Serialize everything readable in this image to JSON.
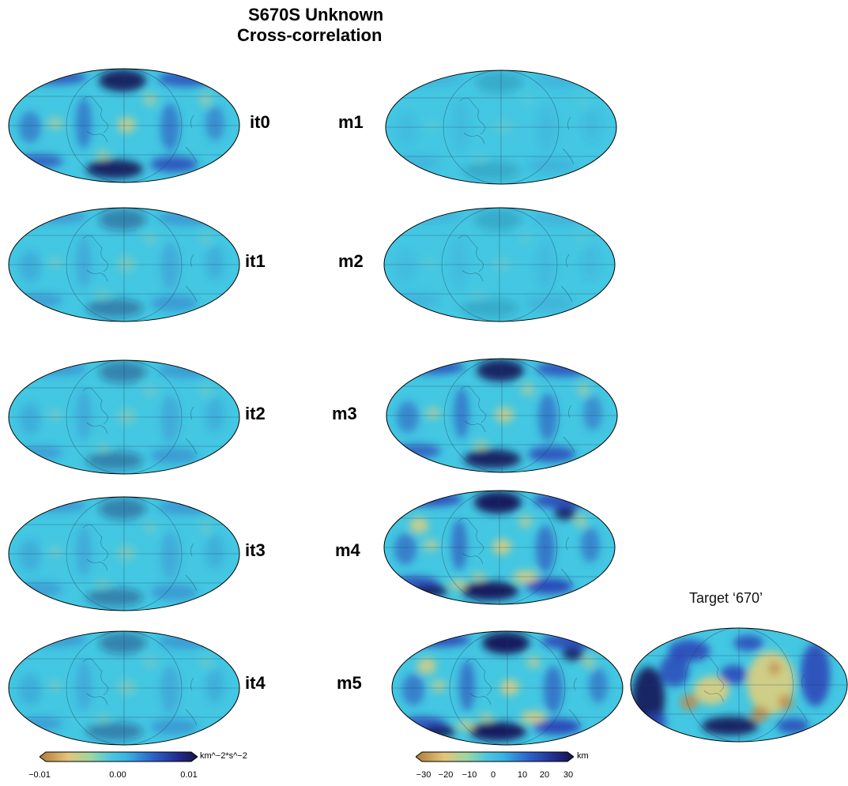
{
  "title": {
    "line1": "S670S Unknown",
    "line2": "Cross-correlation"
  },
  "left_labels": [
    "it0",
    "it1",
    "it2",
    "it3",
    "it4"
  ],
  "right_labels": [
    "m1",
    "m2",
    "m3",
    "m4",
    "m5"
  ],
  "target_title": "Target ‘670’",
  "colorbar_left": {
    "unit": "km^−2*s^−2",
    "ticks": [
      "−0.01",
      "0.00",
      "0.01"
    ]
  },
  "colorbar_right": {
    "unit": "km",
    "ticks": [
      "−30",
      "−20",
      "−10",
      "0",
      "10",
      "20",
      "30"
    ]
  },
  "colors": {
    "background": "#43c7e2",
    "positive_dark": "#181c5e",
    "positive_mid": "#2c49b9",
    "negative_light": "#e6cf77",
    "negative_dark": "#c08a4a"
  }
}
